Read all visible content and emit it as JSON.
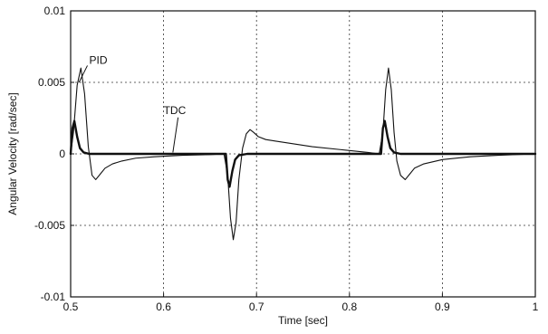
{
  "chart_data": {
    "type": "line",
    "title": "",
    "xlabel": "Time [sec]",
    "ylabel": "Angular Velocity [rad/sec]",
    "xlim": [
      0.5,
      1.0
    ],
    "ylim": [
      -0.01,
      0.01
    ],
    "grid": true,
    "xticks": [
      0.5,
      0.6,
      0.7,
      0.8,
      0.9,
      1.0
    ],
    "xtick_labels": [
      "0.5",
      "0.6",
      "0.7",
      "0.8",
      "0.9",
      "1"
    ],
    "yticks": [
      -0.01,
      -0.005,
      0,
      0.005,
      0.01
    ],
    "ytick_labels": [
      "-0.01",
      "-0.005",
      "0",
      "0.005",
      "0.01"
    ],
    "series": [
      {
        "name": "PID",
        "color": "#111111",
        "x": [
          0.5,
          0.503,
          0.507,
          0.511,
          0.515,
          0.519,
          0.523,
          0.527,
          0.532,
          0.537,
          0.545,
          0.555,
          0.57,
          0.59,
          0.62,
          0.65,
          0.665,
          0.669,
          0.672,
          0.675,
          0.678,
          0.681,
          0.685,
          0.689,
          0.693,
          0.697,
          0.702,
          0.71,
          0.72,
          0.74,
          0.76,
          0.79,
          0.82,
          0.832,
          0.836,
          0.839,
          0.842,
          0.845,
          0.848,
          0.851,
          0.855,
          0.86,
          0.865,
          0.87,
          0.88,
          0.9,
          0.93,
          0.96,
          1.0
        ],
        "y": [
          0,
          0.0015,
          0.0048,
          0.006,
          0.0042,
          0.0005,
          -0.0015,
          -0.0018,
          -0.0014,
          -0.001,
          -0.0007,
          -0.0005,
          -0.0003,
          -0.0002,
          -0.0001,
          -5e-05,
          0,
          -0.0015,
          -0.0045,
          -0.006,
          -0.0048,
          -0.0018,
          0.0004,
          0.0014,
          0.0017,
          0.0015,
          0.0012,
          0.001,
          0.0009,
          0.0007,
          0.0005,
          0.0003,
          0.0001,
          0,
          0.0015,
          0.0045,
          0.006,
          0.0045,
          0.0015,
          -0.0005,
          -0.0015,
          -0.0018,
          -0.0014,
          -0.001,
          -0.0007,
          -0.0004,
          -0.0002,
          -0.0001,
          0
        ]
      },
      {
        "name": "TDC",
        "color": "#111111",
        "x": [
          0.5,
          0.502,
          0.504,
          0.507,
          0.51,
          0.514,
          0.52,
          0.6,
          0.667,
          0.669,
          0.671,
          0.674,
          0.677,
          0.681,
          0.69,
          0.8,
          0.834,
          0.836,
          0.838,
          0.841,
          0.844,
          0.848,
          0.855,
          1.0
        ],
        "y": [
          0,
          0.0018,
          0.0023,
          0.0012,
          0.0004,
          0.0001,
          0,
          0,
          0,
          -0.0018,
          -0.0023,
          -0.0012,
          -0.0004,
          -0.0001,
          0,
          0,
          0,
          0.0018,
          0.0023,
          0.0012,
          0.0004,
          0.0001,
          0,
          0
        ]
      }
    ],
    "annotations": [
      {
        "text": "PID",
        "x": 0.52,
        "y": 0.0063,
        "arrow_to": [
          0.509,
          0.005
        ]
      },
      {
        "text": "TDC",
        "x": 0.6,
        "y": 0.0028,
        "arrow_to": [
          0.61,
          0.0001
        ]
      }
    ]
  }
}
